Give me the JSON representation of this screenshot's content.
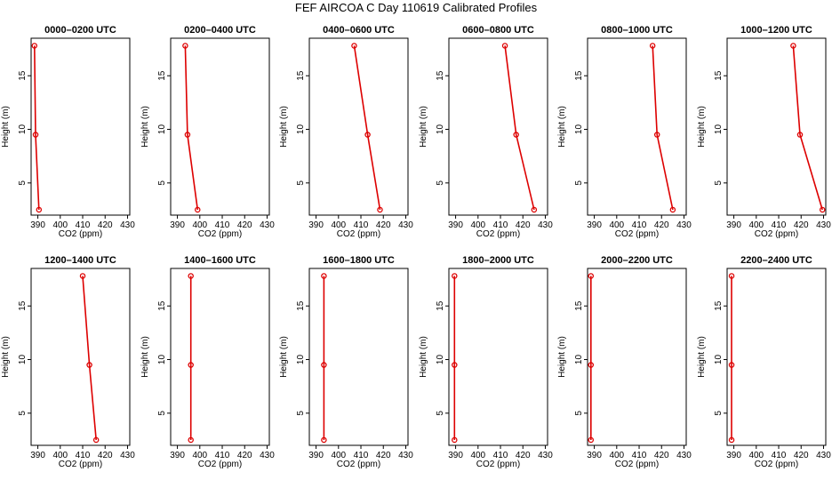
{
  "title": "FEF AIRCOA C  Day 110619  Calibrated Profiles",
  "colors": {
    "profile": "#dd0000",
    "axis": "#000000",
    "background": "#ffffff"
  },
  "chart_data": [
    {
      "type": "line",
      "title": "0000–0200 UTC",
      "xlabel": "CO2 (ppm)",
      "ylabel": "Height (m)",
      "xlim": [
        387,
        431
      ],
      "ylim": [
        2,
        18.5
      ],
      "xticks": [
        390,
        400,
        410,
        420,
        430
      ],
      "yticks": [
        5,
        10,
        15
      ],
      "x": [
        388.5,
        389.0,
        390.5
      ],
      "y": [
        17.8,
        9.5,
        2.5
      ]
    },
    {
      "type": "line",
      "title": "0200–0400 UTC",
      "xlabel": "CO2 (ppm)",
      "ylabel": "Height (m)",
      "xlim": [
        387,
        431
      ],
      "ylim": [
        2,
        18.5
      ],
      "xticks": [
        390,
        400,
        410,
        420,
        430
      ],
      "yticks": [
        5,
        10,
        15
      ],
      "x": [
        393.5,
        394.5,
        399.0
      ],
      "y": [
        17.8,
        9.5,
        2.5
      ]
    },
    {
      "type": "line",
      "title": "0400–0600 UTC",
      "xlabel": "CO2 (ppm)",
      "ylabel": "Height (m)",
      "xlim": [
        387,
        431
      ],
      "ylim": [
        2,
        18.5
      ],
      "xticks": [
        390,
        400,
        410,
        420,
        430
      ],
      "yticks": [
        5,
        10,
        15
      ],
      "x": [
        407.0,
        413.0,
        418.5
      ],
      "y": [
        17.8,
        9.5,
        2.5
      ]
    },
    {
      "type": "line",
      "title": "0600–0800 UTC",
      "xlabel": "CO2 (ppm)",
      "ylabel": "Height (m)",
      "xlim": [
        387,
        431
      ],
      "ylim": [
        2,
        18.5
      ],
      "xticks": [
        390,
        400,
        410,
        420,
        430
      ],
      "yticks": [
        5,
        10,
        15
      ],
      "x": [
        412.0,
        417.0,
        425.0
      ],
      "y": [
        17.8,
        9.5,
        2.5
      ]
    },
    {
      "type": "line",
      "title": "0800–1000 UTC",
      "xlabel": "CO2 (ppm)",
      "ylabel": "Height (m)",
      "xlim": [
        387,
        431
      ],
      "ylim": [
        2,
        18.5
      ],
      "xticks": [
        390,
        400,
        410,
        420,
        430
      ],
      "yticks": [
        5,
        10,
        15
      ],
      "x": [
        416.0,
        418.0,
        425.0
      ],
      "y": [
        17.8,
        9.5,
        2.5
      ]
    },
    {
      "type": "line",
      "title": "1000–1200 UTC",
      "xlabel": "CO2 (ppm)",
      "ylabel": "Height (m)",
      "xlim": [
        387,
        431
      ],
      "ylim": [
        2,
        18.5
      ],
      "xticks": [
        390,
        400,
        410,
        420,
        430
      ],
      "yticks": [
        5,
        10,
        15
      ],
      "x": [
        416.5,
        419.5,
        429.5
      ],
      "y": [
        17.8,
        9.5,
        2.5
      ]
    },
    {
      "type": "line",
      "title": "1200–1400 UTC",
      "xlabel": "CO2 (ppm)",
      "ylabel": "Height (m)",
      "xlim": [
        387,
        431
      ],
      "ylim": [
        2,
        18.5
      ],
      "xticks": [
        390,
        400,
        410,
        420,
        430
      ],
      "yticks": [
        5,
        10,
        15
      ],
      "x": [
        410.0,
        413.0,
        416.0
      ],
      "y": [
        17.8,
        9.5,
        2.5
      ]
    },
    {
      "type": "line",
      "title": "1400–1600 UTC",
      "xlabel": "CO2 (ppm)",
      "ylabel": "Height (m)",
      "xlim": [
        387,
        431
      ],
      "ylim": [
        2,
        18.5
      ],
      "xticks": [
        390,
        400,
        410,
        420,
        430
      ],
      "yticks": [
        5,
        10,
        15
      ],
      "x": [
        396.0,
        396.0,
        396.0
      ],
      "y": [
        17.8,
        9.5,
        2.5
      ]
    },
    {
      "type": "line",
      "title": "1600–1800 UTC",
      "xlabel": "CO2 (ppm)",
      "ylabel": "Height (m)",
      "xlim": [
        387,
        431
      ],
      "ylim": [
        2,
        18.5
      ],
      "xticks": [
        390,
        400,
        410,
        420,
        430
      ],
      "yticks": [
        5,
        10,
        15
      ],
      "x": [
        393.5,
        393.5,
        393.5
      ],
      "y": [
        17.8,
        9.5,
        2.5
      ]
    },
    {
      "type": "line",
      "title": "1800–2000 UTC",
      "xlabel": "CO2 (ppm)",
      "ylabel": "Height (m)",
      "xlim": [
        387,
        431
      ],
      "ylim": [
        2,
        18.5
      ],
      "xticks": [
        390,
        400,
        410,
        420,
        430
      ],
      "yticks": [
        5,
        10,
        15
      ],
      "x": [
        389.5,
        389.5,
        389.5
      ],
      "y": [
        17.8,
        9.5,
        2.5
      ]
    },
    {
      "type": "line",
      "title": "2000–2200 UTC",
      "xlabel": "CO2 (ppm)",
      "ylabel": "Height (m)",
      "xlim": [
        387,
        431
      ],
      "ylim": [
        2,
        18.5
      ],
      "xticks": [
        390,
        400,
        410,
        420,
        430
      ],
      "yticks": [
        5,
        10,
        15
      ],
      "x": [
        388.5,
        388.5,
        388.5
      ],
      "y": [
        17.8,
        9.5,
        2.5
      ]
    },
    {
      "type": "line",
      "title": "2200–2400 UTC",
      "xlabel": "CO2 (ppm)",
      "ylabel": "Height (m)",
      "xlim": [
        387,
        431
      ],
      "ylim": [
        2,
        18.5
      ],
      "xticks": [
        390,
        400,
        410,
        420,
        430
      ],
      "yticks": [
        5,
        10,
        15
      ],
      "x": [
        389.0,
        389.0,
        389.0
      ],
      "y": [
        17.8,
        9.5,
        2.5
      ]
    }
  ]
}
